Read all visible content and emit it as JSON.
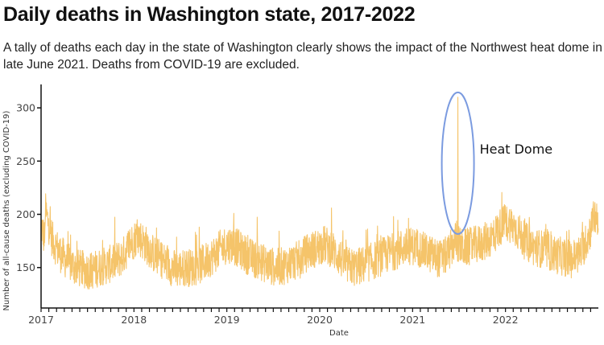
{
  "header": {
    "title": "Daily deaths in Washington state, 2017-2022",
    "subtitle": "A tally of deaths each day in the state of Washington clearly shows the impact of the Northwest heat dome in late June 2021. Deaths from COVID-19 are excluded."
  },
  "chart_data": {
    "type": "line",
    "xlabel": "Date",
    "ylabel": "Number of all-cause deaths (excluding COVID-19)",
    "xlim": [
      2017.0,
      2023.0
    ],
    "ylim": [
      112,
      322
    ],
    "x_ticks": [
      "2017",
      "2018",
      "2019",
      "2020",
      "2021",
      "2022"
    ],
    "y_ticks": [
      150,
      200,
      250,
      300
    ],
    "series_color": "#F5C46A",
    "series": [
      {
        "name": "Daily deaths",
        "resolution": "monthly mean of daily values (daily noise about ±20)",
        "start": "2017-01",
        "monthly_mean": [
          205,
          175,
          163,
          155,
          150,
          148,
          147,
          150,
          152,
          155,
          160,
          172,
          180,
          172,
          163,
          158,
          152,
          148,
          150,
          150,
          152,
          157,
          163,
          170,
          172,
          168,
          162,
          158,
          155,
          152,
          150,
          152,
          155,
          158,
          165,
          168,
          172,
          168,
          160,
          152,
          150,
          152,
          155,
          158,
          162,
          165,
          168,
          170,
          170,
          165,
          162,
          158,
          162,
          175,
          168,
          170,
          172,
          175,
          180,
          190,
          192,
          185,
          175,
          170,
          168,
          165,
          162,
          160,
          158,
          162,
          175,
          198
        ]
      }
    ],
    "annotations": [
      {
        "label": "Heat Dome",
        "date": "2021-06-28",
        "value": 310,
        "marker": "ellipse",
        "color": "#7B9BE0"
      }
    ]
  }
}
